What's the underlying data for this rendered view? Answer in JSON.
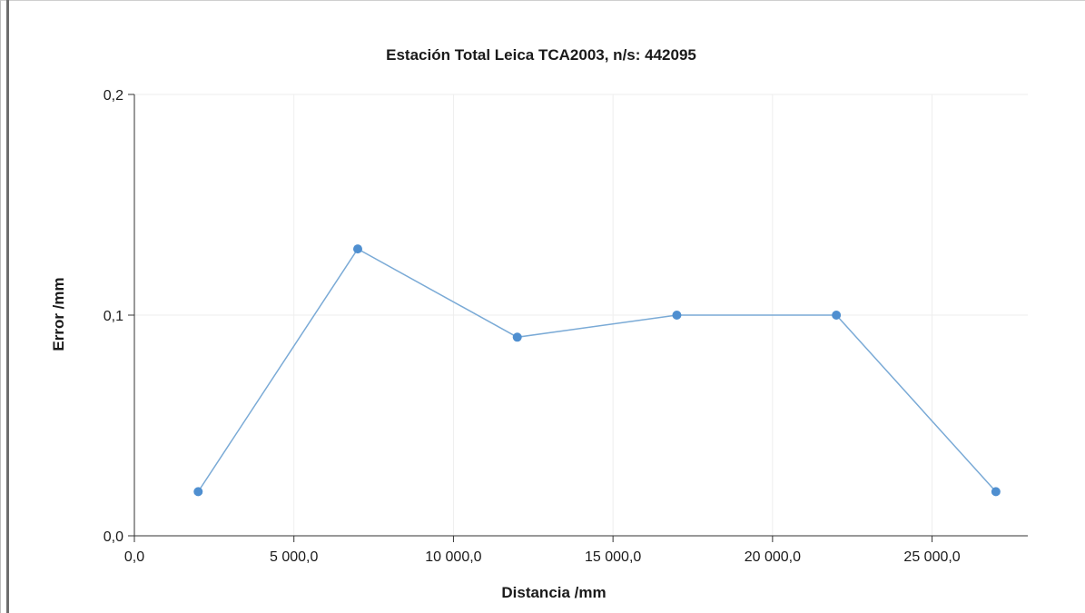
{
  "chart_data": {
    "type": "line",
    "title": "Estación Total Leica TCA2003, n/s: 442095",
    "xlabel": "Distancia /mm",
    "ylabel": "Error /mm",
    "xlim": [
      0,
      28000
    ],
    "ylim": [
      0,
      0.2
    ],
    "x_ticks": [
      0,
      5000,
      10000,
      15000,
      20000,
      25000
    ],
    "x_tick_labels": [
      "0,0",
      "5 000,0",
      "10 000,0",
      "15 000,0",
      "20 000,0",
      "25 000,0"
    ],
    "y_ticks": [
      0,
      0.1,
      0.2
    ],
    "y_tick_labels": [
      "0,0",
      "0,1",
      "0,2"
    ],
    "grid": true,
    "series": [
      {
        "x": [
          2000,
          7000,
          12000,
          17000,
          22000,
          27000
        ],
        "y": [
          0.02,
          0.13,
          0.09,
          0.1,
          0.1,
          0.02
        ]
      }
    ],
    "colors": {
      "line": "#7aaad6",
      "marker": "#4f8fd0",
      "grid": "#eeeeee",
      "axis": "#333333"
    }
  }
}
